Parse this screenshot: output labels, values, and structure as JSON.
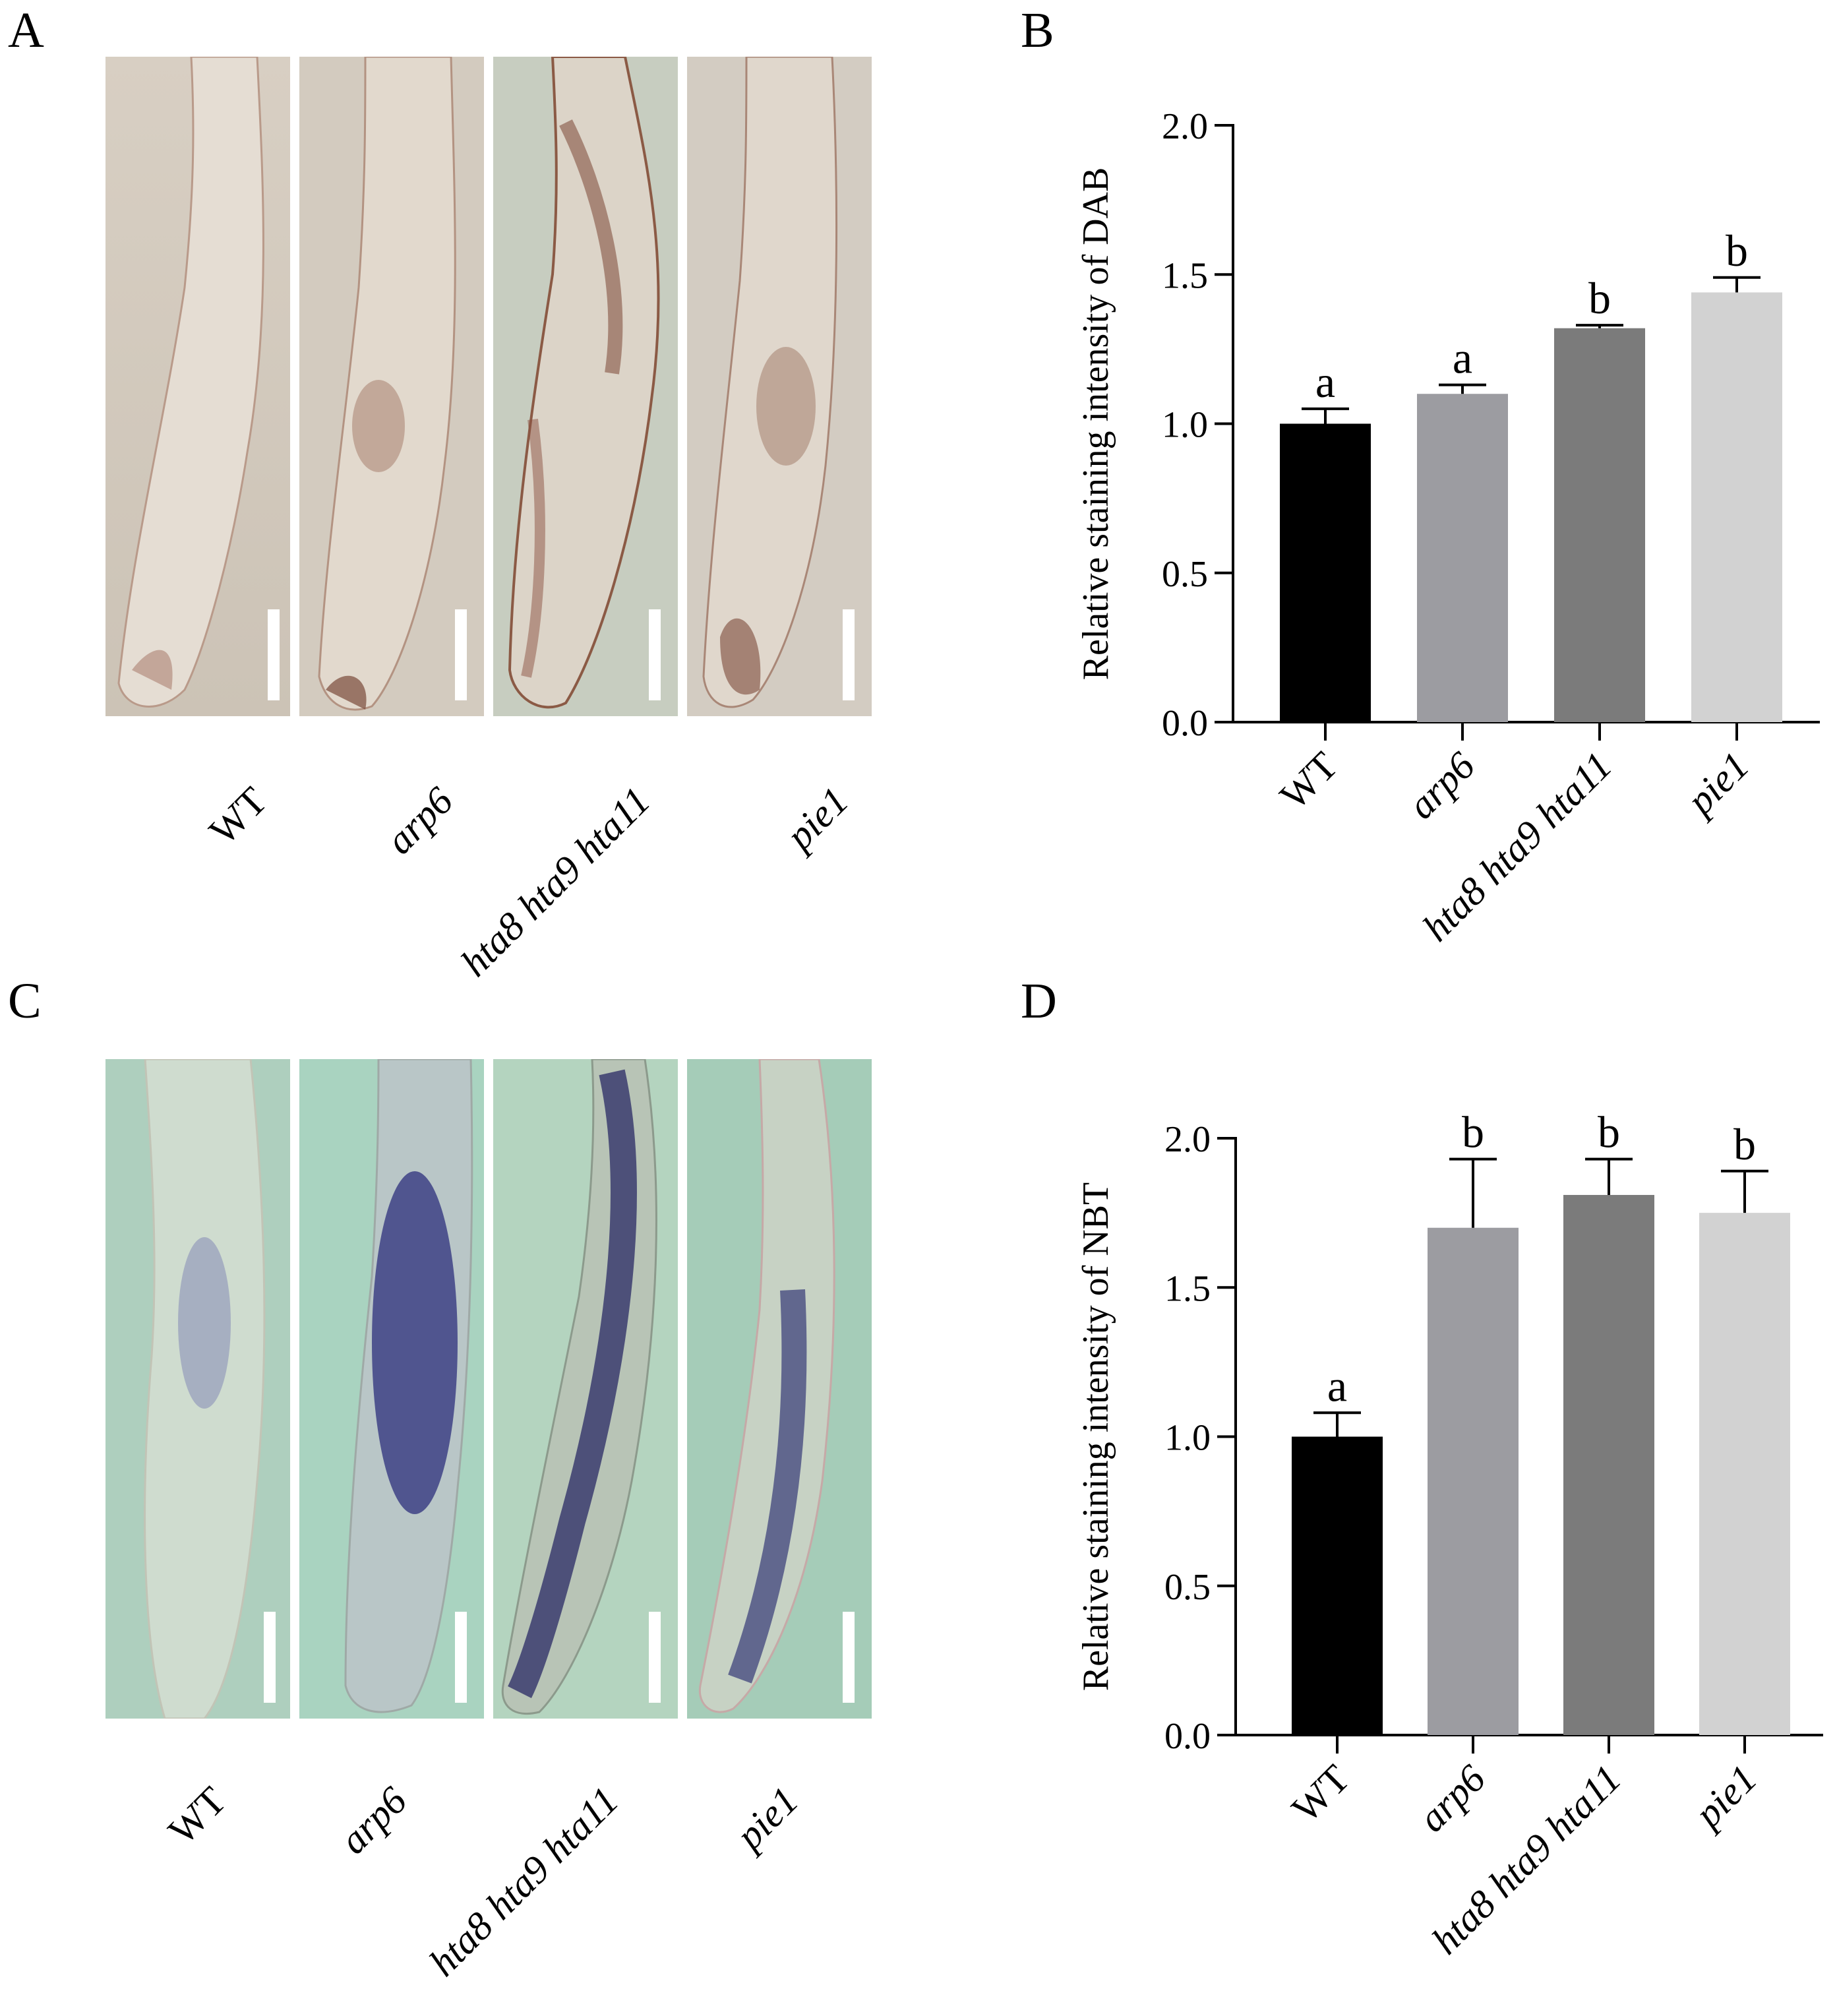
{
  "panels": {
    "A": {
      "letter": "A",
      "genotypes": [
        {
          "label": "WT",
          "italic": false
        },
        {
          "label": "arp6",
          "italic": true
        },
        {
          "label": "hta8 hta9 hta11",
          "italic": true
        },
        {
          "label": "pie1",
          "italic": true
        }
      ]
    },
    "B": {
      "letter": "B"
    },
    "C": {
      "letter": "C",
      "genotypes": [
        {
          "label": "WT",
          "italic": false
        },
        {
          "label": "arp6",
          "italic": true
        },
        {
          "label": "hta8 hta9 hta11",
          "italic": true
        },
        {
          "label": "pie1",
          "italic": true
        }
      ]
    },
    "D": {
      "letter": "D"
    }
  },
  "chart_data": [
    {
      "panel": "B",
      "type": "bar",
      "categories": [
        "WT",
        "arp6",
        "hta8 hta9 hta11",
        "pie1"
      ],
      "category_italic": [
        false,
        true,
        true,
        true
      ],
      "values": [
        1.0,
        1.1,
        1.32,
        1.44
      ],
      "errors": [
        0.05,
        0.03,
        0.01,
        0.05
      ],
      "significance": [
        "a",
        "a",
        "b",
        "b"
      ],
      "bar_colors": [
        "#000000",
        "#9c9ca1",
        "#7b7b7b",
        "#d2d2d2"
      ],
      "ylabel": "Relative  staining intensity of DAB",
      "xlabel": "",
      "ylim": [
        0,
        2.0
      ],
      "yticks": [
        "0.0",
        "0.5",
        "1.0",
        "1.5",
        "2.0"
      ]
    },
    {
      "panel": "D",
      "type": "bar",
      "categories": [
        "WT",
        "arp6",
        "hta8 hta9 hta11",
        "pie1"
      ],
      "category_italic": [
        false,
        true,
        true,
        true
      ],
      "values": [
        1.0,
        1.7,
        1.81,
        1.75
      ],
      "errors": [
        0.08,
        0.23,
        0.12,
        0.14
      ],
      "significance": [
        "a",
        "b",
        "b",
        "b"
      ],
      "bar_colors": [
        "#000000",
        "#9c9ca1",
        "#7b7b7b",
        "#d2d2d2"
      ],
      "ylabel": "Relative  staining intensity of NBT",
      "xlabel": "",
      "ylim": [
        0,
        2.0
      ],
      "yticks": [
        "0.0",
        "0.5",
        "1.0",
        "1.5",
        "2.0"
      ]
    }
  ]
}
